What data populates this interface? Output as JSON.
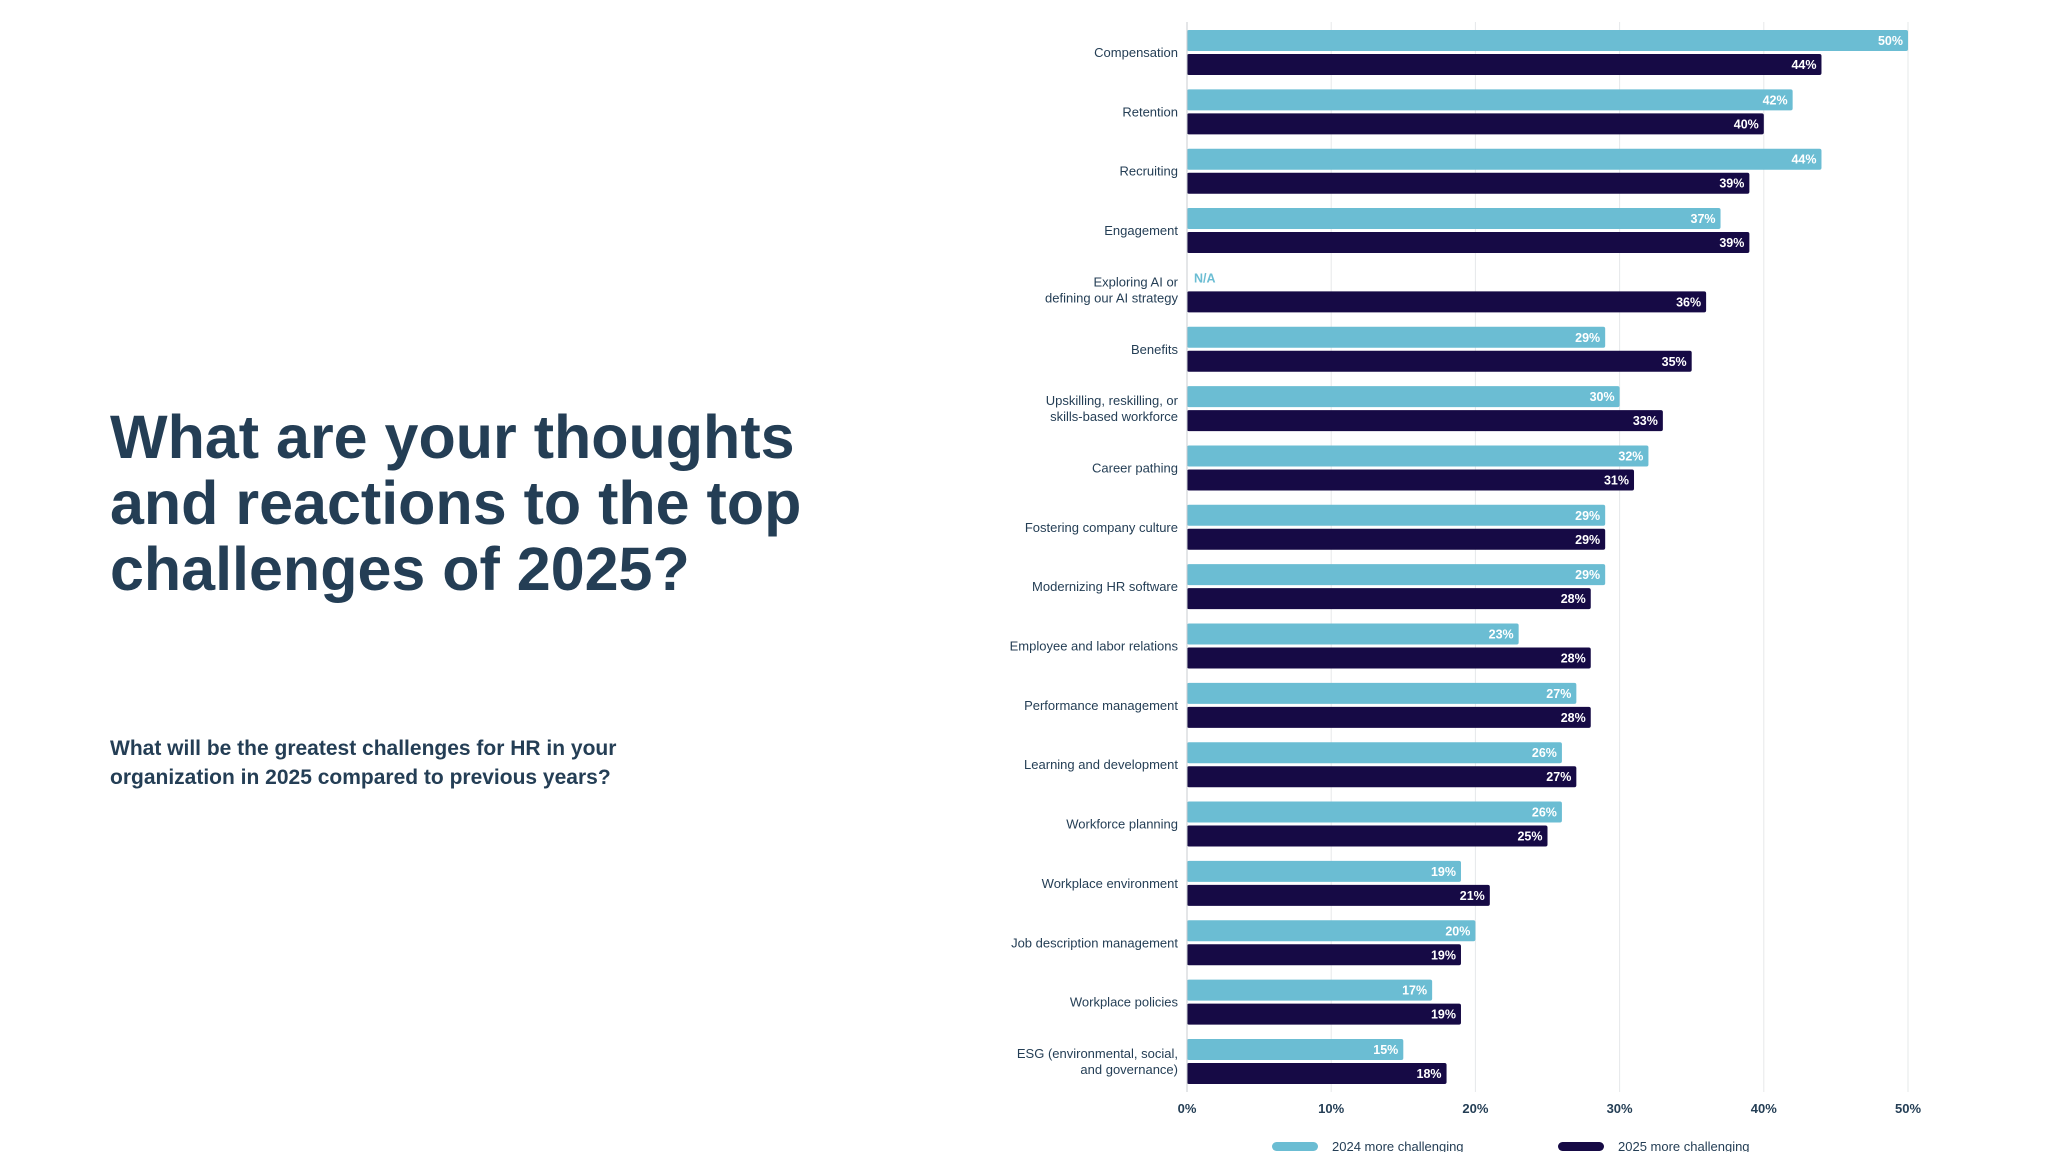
{
  "headline": "What are your thoughts and reactions to the top challenges of 2025?",
  "question": "What will be the greatest challenges for HR in your organization in 2025 compared to previous years?",
  "colors": {
    "series_2024": "#6bbdd3",
    "series_2025": "#160a45",
    "text": "#243e55",
    "grid": "#e6e8ea"
  },
  "chart_data": {
    "type": "bar",
    "orientation": "horizontal",
    "categories": [
      [
        "Compensation"
      ],
      [
        "Retention"
      ],
      [
        "Recruiting"
      ],
      [
        "Engagement"
      ],
      [
        "Exploring AI or",
        "defining our AI strategy"
      ],
      [
        "Benefits"
      ],
      [
        "Upskilling, reskilling, or",
        "skills-based workforce"
      ],
      [
        "Career pathing"
      ],
      [
        "Fostering company culture"
      ],
      [
        "Modernizing HR software"
      ],
      [
        "Employee and labor relations"
      ],
      [
        "Performance management"
      ],
      [
        "Learning and development"
      ],
      [
        "Workforce planning"
      ],
      [
        "Workplace environment"
      ],
      [
        "Job description management"
      ],
      [
        "Workplace policies"
      ],
      [
        "ESG (environmental, social,",
        "and governance)"
      ]
    ],
    "series": [
      {
        "name": "2024 more challenging",
        "values": [
          50,
          42,
          44,
          37,
          null,
          29,
          30,
          32,
          29,
          29,
          23,
          27,
          26,
          26,
          19,
          20,
          17,
          15
        ]
      },
      {
        "name": "2025 more challenging",
        "values": [
          44,
          40,
          39,
          39,
          36,
          35,
          33,
          31,
          29,
          28,
          28,
          28,
          27,
          25,
          21,
          19,
          19,
          18
        ]
      }
    ],
    "missing_label": "N/A",
    "value_suffix": "%",
    "xlim": [
      0,
      50
    ],
    "ticks": [
      {
        "value": 0,
        "label": "0%"
      },
      {
        "value": 10,
        "label": "10%"
      },
      {
        "value": 20,
        "label": "20%"
      },
      {
        "value": 30,
        "label": "30%"
      },
      {
        "value": 40,
        "label": "40%"
      },
      {
        "value": 50,
        "label": "50%"
      }
    ],
    "grid": true,
    "legend": "bottom"
  }
}
